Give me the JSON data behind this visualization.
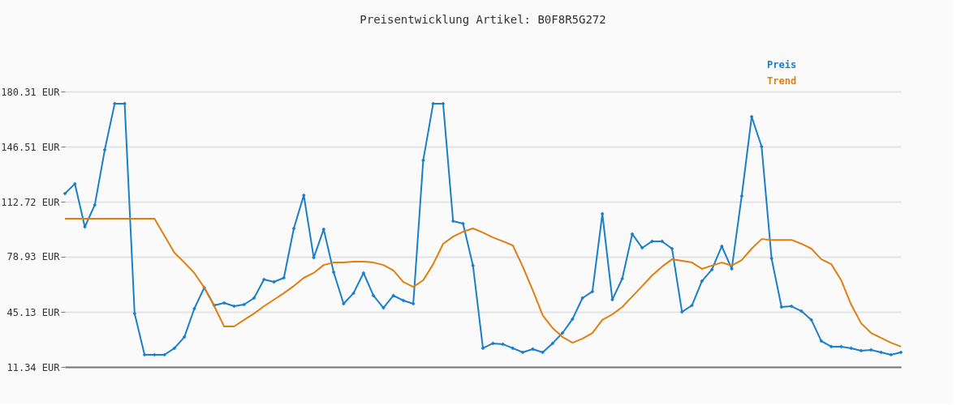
{
  "chart_data": {
    "type": "line",
    "title": "Preisentwicklung Artikel: B0F8R5G272",
    "categories": [
      null,
      null,
      null,
      null,
      null,
      null,
      null,
      null,
      null,
      null,
      null,
      null,
      null,
      null,
      null,
      null,
      null,
      null,
      null,
      null,
      null,
      null,
      null,
      null,
      null,
      null,
      null,
      null,
      null,
      null,
      null,
      null,
      null,
      null,
      null,
      null,
      null,
      null,
      null,
      null,
      null,
      null,
      null,
      null,
      null,
      null,
      null,
      null,
      null,
      null,
      null,
      null,
      null,
      null,
      null,
      null,
      null,
      null,
      null,
      null,
      null,
      null,
      null,
      null,
      null,
      null,
      null,
      null,
      null,
      null,
      null,
      null,
      null,
      null,
      null,
      null,
      null,
      null,
      null,
      null,
      null,
      null,
      null,
      null,
      null
    ],
    "series": [
      {
        "name": "Preis",
        "color": "#1a7fcb",
        "marker": "diamond",
        "values": [
          117.7,
          123.7,
          97.3,
          110.7,
          144.5,
          172.9,
          172.9,
          44.1,
          18.8,
          18.8,
          18.8,
          22.8,
          29.7,
          47.1,
          60.0,
          49.1,
          50.6,
          48.6,
          49.6,
          53.6,
          65.0,
          63.5,
          66.0,
          96.3,
          116.7,
          78.4,
          95.8,
          69.5,
          50.1,
          56.6,
          69.0,
          55.1,
          47.6,
          55.1,
          52.1,
          50.1,
          138.1,
          172.9,
          172.9,
          100.8,
          99.3,
          73.5,
          22.8,
          25.8,
          25.3,
          22.8,
          20.3,
          22.3,
          20.3,
          25.8,
          32.2,
          40.7,
          53.6,
          57.6,
          105.3,
          52.6,
          65.5,
          92.9,
          84.4,
          88.4,
          88.4,
          83.9,
          45.1,
          49.1,
          64.0,
          71.0,
          85.4,
          71.5,
          116.2,
          164.9,
          146.5,
          77.9,
          48.1,
          48.6,
          45.6,
          40.2,
          27.2,
          23.8,
          23.8,
          22.8,
          21.3,
          21.8,
          20.3,
          18.8,
          20.3
        ]
      },
      {
        "name": "Trend",
        "color": "#e07f10",
        "marker": "none",
        "values": [
          102.3,
          102.3,
          102.3,
          102.3,
          102.3,
          102.3,
          102.3,
          102.3,
          102.3,
          102.3,
          91.8,
          81.4,
          75.4,
          69.0,
          60.0,
          48.6,
          36.2,
          36.2,
          40.2,
          44.1,
          48.6,
          52.6,
          56.6,
          61.0,
          66.0,
          69.0,
          73.9,
          75.4,
          75.4,
          75.9,
          75.9,
          75.4,
          73.9,
          70.5,
          63.5,
          60.5,
          64.5,
          74.4,
          86.9,
          91.3,
          94.3,
          96.3,
          93.8,
          90.8,
          88.4,
          85.9,
          72.9,
          58.5,
          43.1,
          35.2,
          29.7,
          26.2,
          28.7,
          32.2,
          40.2,
          43.6,
          48.1,
          54.5,
          61.0,
          67.5,
          72.9,
          77.4,
          76.4,
          75.4,
          71.5,
          73.5,
          75.4,
          73.5,
          76.9,
          83.9,
          89.8,
          89.3,
          89.3,
          89.3,
          86.9,
          83.9,
          77.4,
          74.4,
          64.5,
          49.6,
          38.1,
          32.2,
          29.2,
          26.2,
          23.8
        ]
      }
    ],
    "ylim": [
      11.34,
      180.31
    ],
    "yticks": [
      {
        "value": 11.34,
        "label": "11.34 EUR"
      },
      {
        "value": 45.13,
        "label": "45.13 EUR"
      },
      {
        "value": 78.93,
        "label": "78.93 EUR"
      },
      {
        "value": 112.72,
        "label": "112.72 EUR"
      },
      {
        "value": 146.51,
        "label": "146.51 EUR"
      },
      {
        "value": 180.31,
        "label": "180.31 EUR"
      }
    ],
    "grid": "y",
    "tick_labels": "y",
    "legend": "top right",
    "line_style": "solid"
  }
}
